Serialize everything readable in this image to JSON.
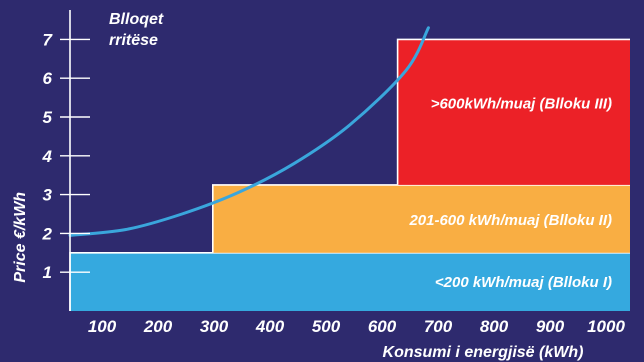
{
  "chart_data": {
    "type": "area",
    "title": "",
    "ylabel": "Price €/kWh",
    "xlabel": "Konsumi i energjisë (kWh)",
    "legend_title_lines": [
      "Blloqet",
      "rritëse"
    ],
    "xlim": [
      0,
      1000
    ],
    "ylim": [
      0,
      7.5
    ],
    "x_ticks": [
      100,
      200,
      300,
      400,
      500,
      600,
      700,
      800,
      900,
      1000
    ],
    "y_ticks": [
      1,
      2,
      3,
      4,
      5,
      6,
      7
    ],
    "blocks": [
      {
        "label": "<200 kWh/muaj (Blloku I)",
        "x_start": 0,
        "x_end": 1000,
        "y_bottom": 0,
        "y_top": 1.5,
        "color": "#35a9df"
      },
      {
        "label": "201-600 kWh/muaj (Blloku II)",
        "x_start": 255,
        "x_end": 1000,
        "y_bottom": 1.5,
        "y_top": 3.25,
        "color": "#f9ae43"
      },
      {
        "label": ">600kWh/muaj (Blloku III)",
        "x_start": 585,
        "x_end": 1000,
        "y_bottom": 3.25,
        "y_top": 7.0,
        "color": "#ec2127"
      }
    ],
    "curve": {
      "color": "#3aa6dc",
      "points": [
        [
          0,
          1.95
        ],
        [
          100,
          2.1
        ],
        [
          200,
          2.5
        ],
        [
          300,
          3.05
        ],
        [
          400,
          3.8
        ],
        [
          500,
          4.8
        ],
        [
          600,
          6.2
        ],
        [
          640,
          7.3
        ]
      ]
    },
    "colors": {
      "background": "#2e2a6e",
      "axis": "#ffffff",
      "text": "#ffffff",
      "block_edge": "#ffffff"
    }
  }
}
